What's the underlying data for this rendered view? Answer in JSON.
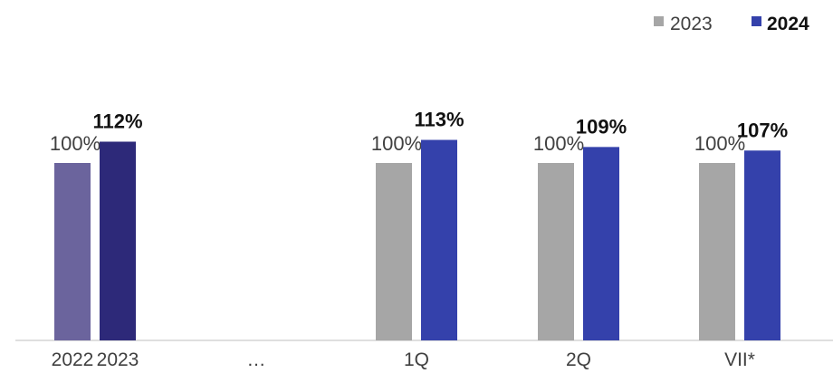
{
  "chart_data": {
    "type": "bar",
    "title": "",
    "xlabel": "",
    "ylabel": "",
    "ylim": [
      0,
      130
    ],
    "grid": false,
    "legend": {
      "position": "top-right",
      "items": [
        {
          "label": "2023",
          "color": "#a6a6a6"
        },
        {
          "label": "2024",
          "color": "#3441ab"
        }
      ]
    },
    "groups": [
      {
        "category": "",
        "bars": [
          {
            "tick": "2022",
            "value": 100,
            "label": "100%",
            "color": "#6b649d",
            "label_bold": false
          },
          {
            "tick": "2023",
            "value": 112,
            "label": "112%",
            "color": "#2d2979",
            "label_bold": true
          }
        ]
      },
      {
        "category": "…",
        "bars": []
      },
      {
        "category": "1Q",
        "bars": [
          {
            "value": 100,
            "label": "100%",
            "color": "#a6a6a6",
            "label_bold": false,
            "series": "2023"
          },
          {
            "value": 113,
            "label": "113%",
            "color": "#3441ab",
            "label_bold": true,
            "series": "2024"
          }
        ]
      },
      {
        "category": "2Q",
        "bars": [
          {
            "value": 100,
            "label": "100%",
            "color": "#a6a6a6",
            "label_bold": false,
            "series": "2023"
          },
          {
            "value": 109,
            "label": "109%",
            "color": "#3441ab",
            "label_bold": true,
            "series": "2024"
          }
        ]
      },
      {
        "category": "VII*",
        "bars": [
          {
            "value": 100,
            "label": "100%",
            "color": "#a6a6a6",
            "label_bold": false,
            "series": "2023"
          },
          {
            "value": 107,
            "label": "107%",
            "color": "#3441ab",
            "label_bold": true,
            "series": "2024"
          }
        ]
      }
    ]
  }
}
